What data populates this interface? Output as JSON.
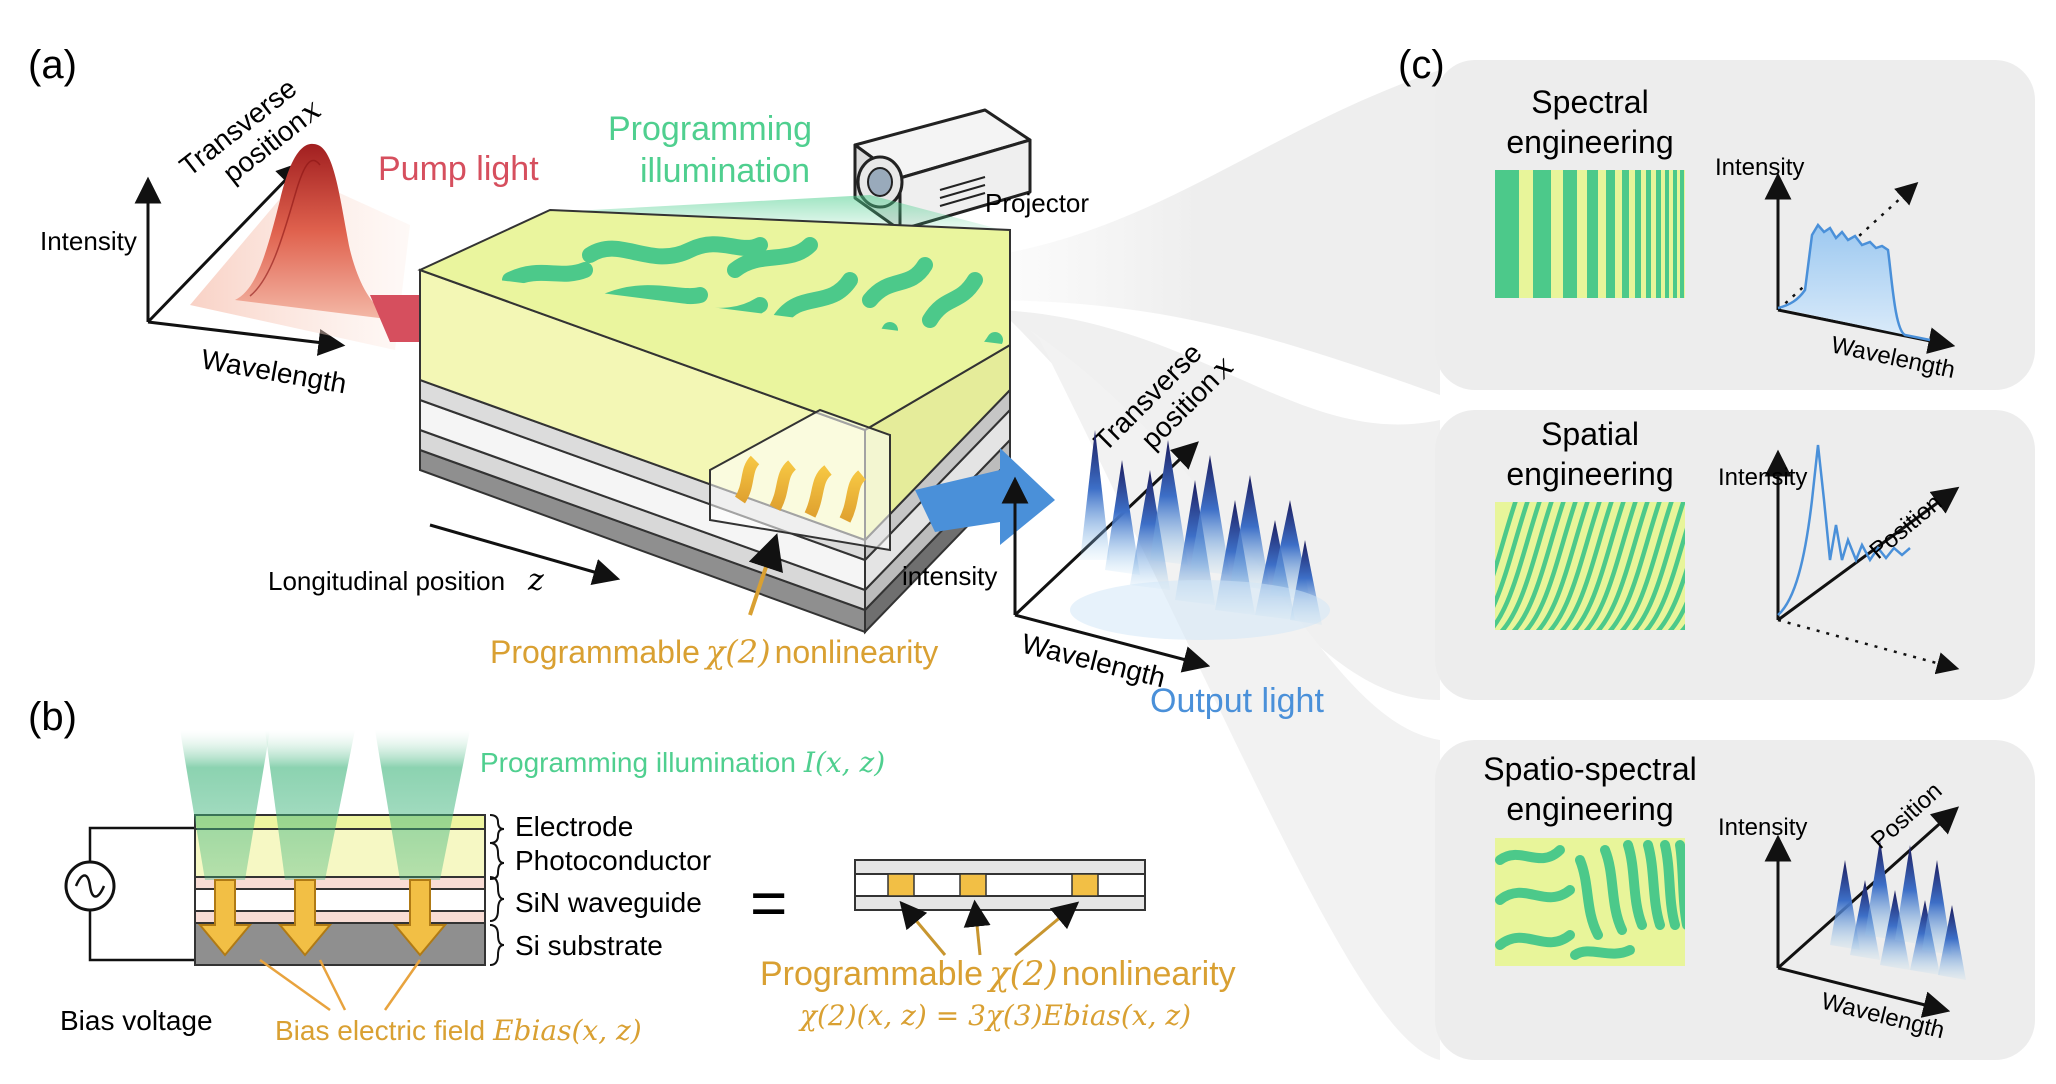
{
  "panels": {
    "a": {
      "label": "(a)",
      "pump_label": "Pump light",
      "programming_label_line1": "Programming",
      "programming_label_line2": "illumination",
      "projector_label": "Projector",
      "input_axes": {
        "vertical": "Intensity",
        "diag_line1": "Transverse",
        "diag_line2": "position",
        "diag_var": "x",
        "horizontal": "Wavelength"
      },
      "longitudinal_text": "Longitudinal position",
      "longitudinal_var": "z",
      "nonlinearity_text1": "Programmable",
      "nonlinearity_math": "χ(2)",
      "nonlinearity_text2": "nonlinearity",
      "output_axes": {
        "vertical": "intensity",
        "diag_line1": "Transverse",
        "diag_line2": "position",
        "diag_var": "x",
        "horizontal": "Wavelength"
      },
      "output_label": "Output light"
    },
    "b": {
      "label": "(b)",
      "programming_text": "Programming illumination",
      "programming_math": "I(x, z)",
      "layers": [
        "Electrode",
        "Photoconductor",
        "SiN waveguide",
        "Si substrate"
      ],
      "bias_voltage": "Bias voltage",
      "bias_field_text": "Bias electric field",
      "bias_field_math": "Ebias(x, z)",
      "equals": "=",
      "nonlinearity_text1": "Programmable",
      "nonlinearity_math": "χ(2)",
      "nonlinearity_text2": "nonlinearity",
      "equation": "χ(2)(x, z) = 3χ(3)Ebias(x, z)"
    },
    "c": {
      "label": "(c)",
      "cards": [
        {
          "title_line1": "Spectral",
          "title_line2": "engineering",
          "axis_vertical": "Intensity",
          "axis_horizontal": "Wavelength",
          "axis_diag": ""
        },
        {
          "title_line1": "Spatial",
          "title_line2": "engineering",
          "axis_vertical": "Intensity",
          "axis_horizontal": "",
          "axis_diag": "Position"
        },
        {
          "title_line1": "Spatio-spectral",
          "title_line2": "engineering",
          "axis_vertical": "Intensity",
          "axis_horizontal": "Wavelength",
          "axis_diag": "Position"
        }
      ]
    }
  },
  "colors": {
    "pump": "#d64f5e",
    "programming": "#4fcf8f",
    "output": "#4a90d9",
    "nonlinearity": "#d9a032",
    "pattern_yellow": "#e8f59a",
    "pattern_green": "#4cc98a",
    "peak_dark": "#2a2a80",
    "peak_light": "#5aa0e0"
  }
}
